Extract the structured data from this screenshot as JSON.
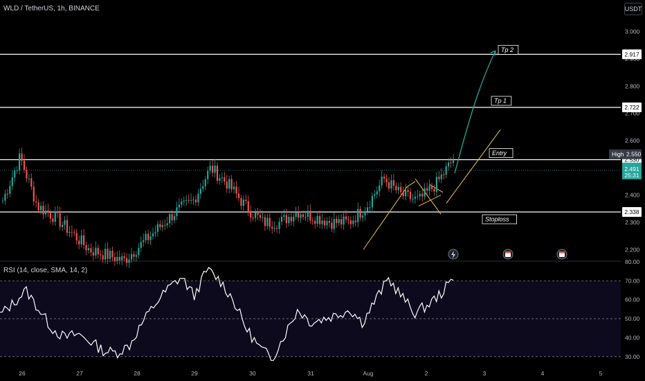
{
  "header": {
    "title": "WLD / TetherUS, 1h, BINANCE",
    "currency_button": "USDT"
  },
  "chart_data": [
    {
      "type": "candlestick",
      "title": "WLD / TetherUS, 1h, BINANCE",
      "ylim": [
        2.16,
        3.04
      ],
      "y_ticks": [
        "2.200",
        "2.300",
        "2.400",
        "2.500",
        "2.600",
        "2.700",
        "2.800",
        "2.900",
        "3.000"
      ],
      "x_ticks": [
        "26",
        "27",
        "28",
        "29",
        "30",
        "31",
        "Aug",
        "2",
        "3",
        "4",
        "5"
      ],
      "colors": {
        "up": "#26a69a",
        "down": "#ef5350",
        "target": "#26a69a",
        "channel": "#f0c348"
      },
      "horizontal_levels": [
        {
          "price": 2.917,
          "label": "2.917",
          "annotation": "Tp 2"
        },
        {
          "price": 2.722,
          "label": "2.722",
          "annotation": "Tp 1"
        },
        {
          "price": 2.53,
          "label": "2.530",
          "annotation": "Entry"
        },
        {
          "price": 2.338,
          "label": "2.338",
          "annotation": "Stoploss"
        }
      ],
      "price_tags": [
        {
          "text": "High",
          "value": "2.550",
          "color": "#363a45"
        },
        {
          "text": "2.491",
          "value": "25:31",
          "color": "#26a69a"
        }
      ],
      "key_points": [
        {
          "day": "26",
          "price": 2.54
        },
        {
          "day": "28",
          "price": 2.16
        },
        {
          "day": "30",
          "price": 2.5
        },
        {
          "day": "31",
          "price": 2.3
        },
        {
          "day": "Aug",
          "price": 2.3
        },
        {
          "day": "2",
          "price": 2.46
        },
        {
          "day": "2",
          "price": 2.38
        },
        {
          "day": "2",
          "price": 2.53
        }
      ],
      "projection": {
        "from": 2.48,
        "to": 2.93,
        "target": "Tp 2"
      },
      "event_icons": [
        "lightning-icon",
        "calendar-icon",
        "calendar-icon"
      ]
    },
    {
      "type": "line",
      "title": "RSI (14, close, SMA, 14, 2)",
      "ylim": [
        27,
        80
      ],
      "y_ticks": [
        "30.00",
        "40.00",
        "50.00",
        "60.00",
        "70.00",
        "80.00"
      ],
      "reference_lines": [
        30,
        50,
        70
      ],
      "band": [
        30,
        70
      ],
      "color": "#ffffff",
      "key_points": [
        {
          "day": "26",
          "value": 52
        },
        {
          "day": "26",
          "value": 65
        },
        {
          "day": "27",
          "value": 40
        },
        {
          "day": "28",
          "value": 32
        },
        {
          "day": "29",
          "value": 72
        },
        {
          "day": "30",
          "value": 76
        },
        {
          "day": "31",
          "value": 29
        },
        {
          "day": "31",
          "value": 55
        },
        {
          "day": "Aug",
          "value": 48
        },
        {
          "day": "2",
          "value": 71
        },
        {
          "day": "2",
          "value": 53
        },
        {
          "day": "2",
          "value": 71
        }
      ]
    }
  ],
  "rsi_title": "RSI (14, close, SMA, 14, 2)"
}
